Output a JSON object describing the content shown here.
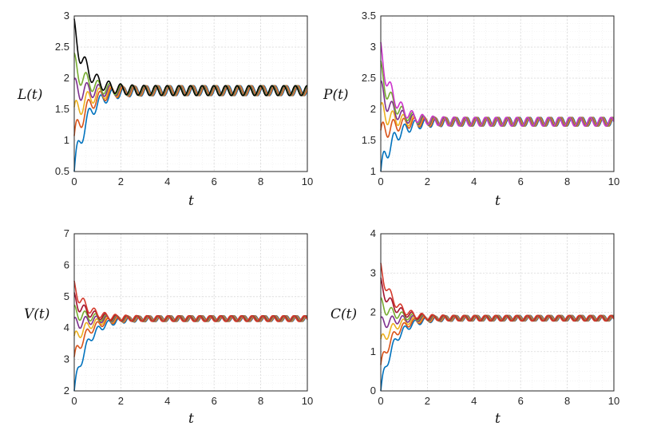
{
  "chart_data": [
    {
      "type": "line",
      "id": "L",
      "ylabel": "L(t)",
      "xlabel": "t",
      "xlim": [
        0,
        10
      ],
      "ylim": [
        0.5,
        3
      ],
      "xticks": [
        0,
        2,
        4,
        6,
        8,
        10
      ],
      "yticks": [
        0.5,
        1,
        1.5,
        2,
        2.5,
        3
      ],
      "ytick_labels": [
        "0.5",
        "1",
        "1.5",
        "2",
        "2.5",
        "3"
      ],
      "steady_state": 1.8,
      "oscillation_amplitude": 0.08,
      "oscillation_period": 0.5,
      "grid": true,
      "series": [
        {
          "initial": 0.5,
          "color": "#0072BD"
        },
        {
          "initial": 1.0,
          "color": "#D95319"
        },
        {
          "initial": 1.4,
          "color": "#EDB120"
        },
        {
          "initial": 1.8,
          "color": "#7E2F8E"
        },
        {
          "initial": 2.2,
          "color": "#77AC30"
        },
        {
          "initial": 2.75,
          "color": "#000000"
        }
      ]
    },
    {
      "type": "line",
      "id": "P",
      "ylabel": "P(t)",
      "xlabel": "t",
      "xlim": [
        0,
        10
      ],
      "ylim": [
        1,
        3.5
      ],
      "xticks": [
        0,
        2,
        4,
        6,
        8,
        10
      ],
      "yticks": [
        1,
        1.5,
        2,
        2.5,
        3,
        3.5
      ],
      "ytick_labels": [
        "1",
        "1.5",
        "2",
        "2.5",
        "3",
        "3.5"
      ],
      "steady_state": 1.8,
      "oscillation_amplitude": 0.07,
      "oscillation_period": 0.45,
      "grid": true,
      "series": [
        {
          "initial": 1.0,
          "color": "#0072BD"
        },
        {
          "initial": 1.6,
          "color": "#D95319"
        },
        {
          "initial": 1.95,
          "color": "#EDB120"
        },
        {
          "initial": 2.3,
          "color": "#7E2F8E"
        },
        {
          "initial": 2.6,
          "color": "#77AC30"
        },
        {
          "initial": 2.9,
          "color": "#CC33CC"
        }
      ]
    },
    {
      "type": "line",
      "id": "V",
      "ylabel": "V(t)",
      "xlabel": "t",
      "xlim": [
        0,
        10
      ],
      "ylim": [
        2,
        7
      ],
      "xticks": [
        0,
        2,
        4,
        6,
        8,
        10
      ],
      "yticks": [
        2,
        3,
        4,
        5,
        6,
        7
      ],
      "ytick_labels": [
        "2",
        "3",
        "4",
        "5",
        "6",
        "7"
      ],
      "steady_state": 4.3,
      "oscillation_amplitude": 0.09,
      "oscillation_period": 0.45,
      "grid": true,
      "series": [
        {
          "initial": 2.0,
          "color": "#0072BD"
        },
        {
          "initial": 3.0,
          "color": "#D95319"
        },
        {
          "initial": 3.6,
          "color": "#EDB120"
        },
        {
          "initial": 4.1,
          "color": "#7E2F8E"
        },
        {
          "initial": 4.5,
          "color": "#77AC30"
        },
        {
          "initial": 4.9,
          "color": "#A2142F"
        },
        {
          "initial": 5.3,
          "color": "#D43A2C"
        }
      ]
    },
    {
      "type": "line",
      "id": "C",
      "ylabel": "C(t)",
      "xlabel": "t",
      "xlim": [
        0,
        10
      ],
      "ylim": [
        0,
        4
      ],
      "xticks": [
        0,
        2,
        4,
        6,
        8,
        10
      ],
      "yticks": [
        0,
        1,
        2,
        3,
        4
      ],
      "ytick_labels": [
        "0",
        "1",
        "2",
        "3",
        "4"
      ],
      "steady_state": 1.85,
      "oscillation_amplitude": 0.07,
      "oscillation_period": 0.45,
      "grid": true,
      "series": [
        {
          "initial": 0.0,
          "color": "#0072BD"
        },
        {
          "initial": 0.6,
          "color": "#D95319"
        },
        {
          "initial": 1.2,
          "color": "#EDB120"
        },
        {
          "initial": 1.7,
          "color": "#7E2F8E"
        },
        {
          "initial": 2.2,
          "color": "#77AC30"
        },
        {
          "initial": 2.7,
          "color": "#A2142F"
        },
        {
          "initial": 3.1,
          "color": "#D43A2C"
        }
      ]
    }
  ]
}
